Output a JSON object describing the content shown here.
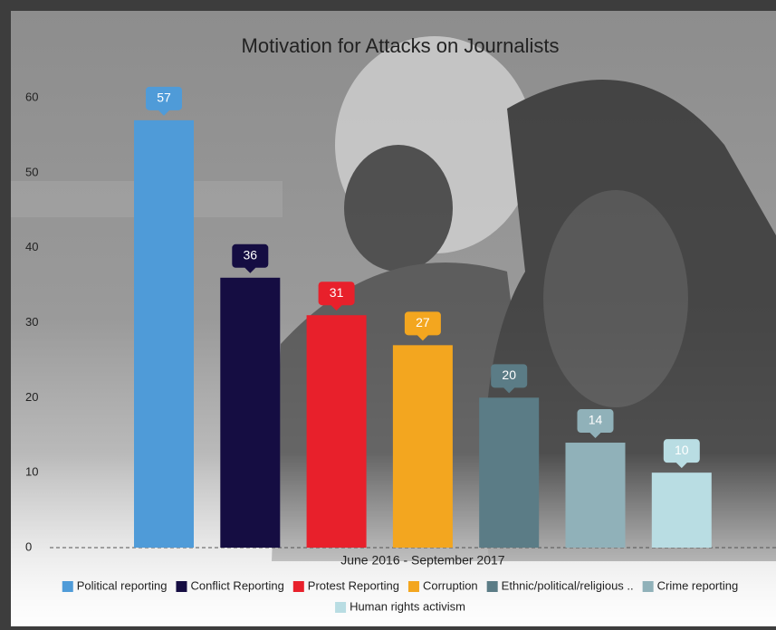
{
  "chart_data": {
    "type": "bar",
    "title": "Motivation for Attacks on Journalists",
    "categories": [
      "June 2016 - September 2017"
    ],
    "series": [
      {
        "name": "Political reporting",
        "color": "#4f9bd8",
        "values": [
          57
        ]
      },
      {
        "name": "Conflict Reporting",
        "color": "#150d42",
        "values": [
          36
        ]
      },
      {
        "name": "Protest Reporting",
        "color": "#e8202b",
        "values": [
          31
        ]
      },
      {
        "name": "Corruption",
        "color": "#f3a61f",
        "values": [
          27
        ]
      },
      {
        "name": "Ethnic/political/religious ..",
        "color": "#5b7c86",
        "values": [
          20
        ]
      },
      {
        "name": "Crime reporting",
        "color": "#90b1b9",
        "values": [
          14
        ]
      },
      {
        "name": "Human rights activism",
        "color": "#b9dde3",
        "values": [
          10
        ]
      }
    ],
    "ylim": [
      0,
      60
    ],
    "yticks": [
      0,
      10,
      20,
      30,
      40,
      50,
      60
    ],
    "grid": false
  }
}
